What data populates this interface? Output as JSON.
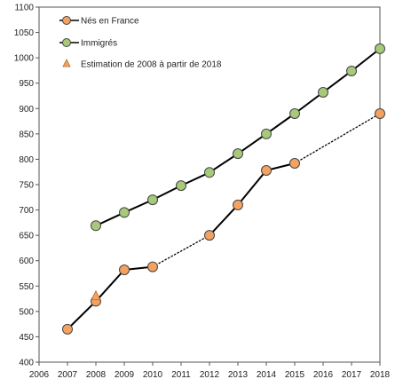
{
  "chart_data": {
    "type": "line",
    "title": "",
    "xlabel": "",
    "ylabel": "",
    "xlim": [
      2006,
      2018
    ],
    "ylim": [
      400,
      1100
    ],
    "x_ticks": [
      "2006",
      "2007",
      "2008",
      "2009",
      "2010",
      "2011",
      "2012",
      "2013",
      "2014",
      "2015",
      "2016",
      "2017",
      "2018"
    ],
    "y_ticks": [
      "400",
      "450",
      "500",
      "550",
      "600",
      "650",
      "700",
      "750",
      "800",
      "850",
      "900",
      "950",
      "1000",
      "1050",
      "1100"
    ],
    "grid": false,
    "legend_position": "top-left",
    "series": [
      {
        "name": "Nés en France",
        "color": "#f4a261",
        "marker": "circle",
        "x": [
          2007,
          2008,
          2009,
          2010,
          2012,
          2013,
          2014,
          2015,
          2018
        ],
        "values": [
          465,
          520,
          582,
          588,
          650,
          710,
          778,
          792,
          890
        ],
        "dotted_segments": [
          [
            2010,
            2012
          ],
          [
            2015,
            2018
          ]
        ]
      },
      {
        "name": "Immigrés",
        "color": "#a6c97a",
        "marker": "circle",
        "x": [
          2008,
          2009,
          2010,
          2011,
          2012,
          2013,
          2014,
          2015,
          2016,
          2017,
          2018
        ],
        "values": [
          669,
          695,
          720,
          748,
          774,
          811,
          850,
          890,
          932,
          974,
          1018
        ],
        "dotted_segments": [
          [
            2016,
            2018
          ]
        ]
      },
      {
        "name": "Estimation de  2008 à partir de 2018",
        "color": "#f4a261",
        "marker": "triangle",
        "x": [
          2008
        ],
        "values": [
          530
        ]
      }
    ]
  }
}
